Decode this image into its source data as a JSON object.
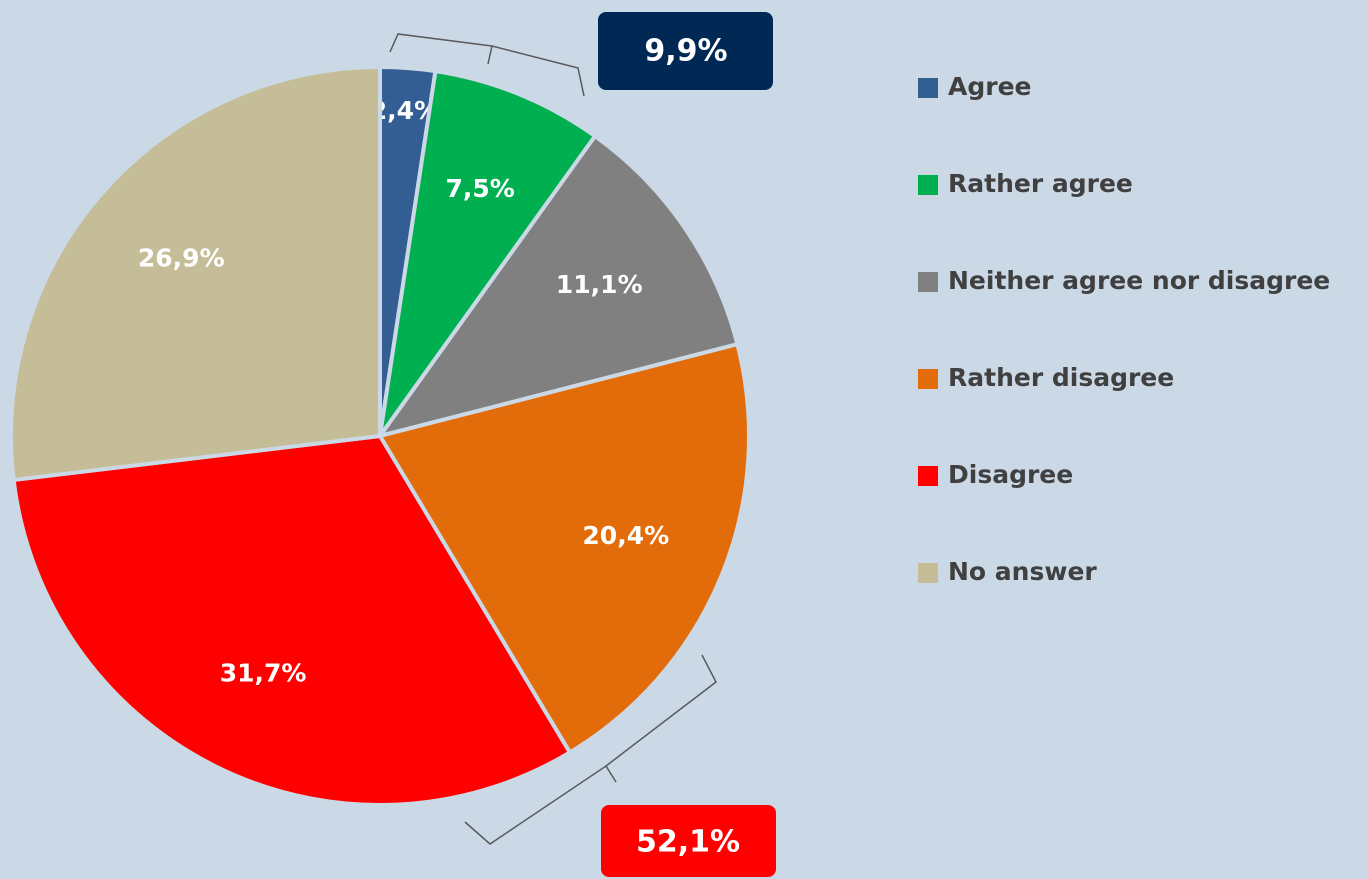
{
  "chart_data": {
    "type": "pie",
    "categories": [
      "Agree",
      "Rather agree",
      "Neither agree nor disagree",
      "Rather disagree",
      "Disagree",
      "No answer"
    ],
    "values": [
      2.4,
      7.5,
      11.1,
      20.4,
      31.7,
      26.9
    ],
    "value_labels": [
      "2,4%",
      "7,5%",
      "11,1%",
      "20,4%",
      "31,7%",
      "26,9%"
    ],
    "colors": [
      "#335e93",
      "#00b050",
      "#808080",
      "#e36c0a",
      "#ff0000",
      "#c4bd97"
    ],
    "legend": "right",
    "annotations": [
      {
        "text": "9,9%"
      },
      {
        "text": "52,1%"
      }
    ]
  }
}
